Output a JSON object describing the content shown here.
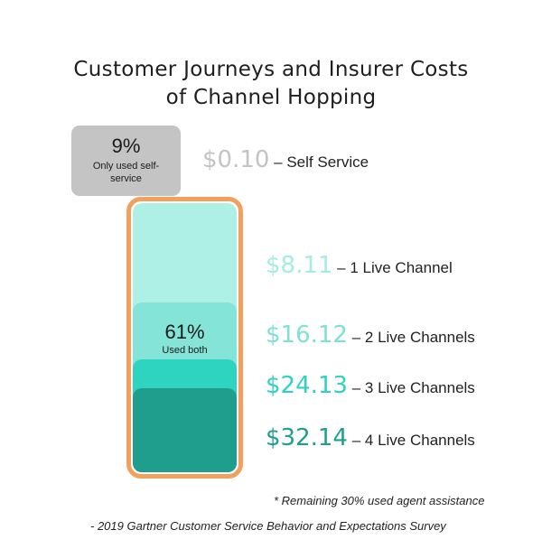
{
  "title_line1": "Customer Journeys and Insurer Costs",
  "title_line2": "of Channel Hopping",
  "self_service_box": {
    "pct": "9%",
    "label": "Only used self-service"
  },
  "used_both": {
    "pct": "61%",
    "label": "Used both"
  },
  "chart_data": {
    "type": "table",
    "title": "Customer Journeys and Insurer Costs of Channel Hopping",
    "columns": [
      "cost",
      "channel"
    ],
    "rows": [
      {
        "amount": "$0.10",
        "separator": "–",
        "channel": "Self Service",
        "value": 0.1,
        "color": "#c4c4c4"
      },
      {
        "amount": "$8.11",
        "separator": "–",
        "channel": "1 Live Channel",
        "value": 8.11,
        "color": "#a6ece2"
      },
      {
        "amount": "$16.12",
        "separator": "–",
        "channel": "2 Live Channels",
        "value": 16.12,
        "color": "#7ee1d4"
      },
      {
        "amount": "$24.13",
        "separator": "–",
        "channel": "3 Live Channels",
        "value": 24.13,
        "color": "#2fd1bf"
      },
      {
        "amount": "$32.14",
        "separator": "–",
        "channel": "4 Live Channels",
        "value": 32.14,
        "color": "#1e9e8d"
      }
    ],
    "shares": [
      {
        "label": "Only used self-service",
        "percent": 9
      },
      {
        "label": "Used both",
        "percent": 61
      },
      {
        "label": "used agent assistance",
        "percent": 30
      }
    ]
  },
  "colors": {
    "container_border": "#f2a05e",
    "band_1": "#aef0e6",
    "band_2": "#84e4d7",
    "band_3": "#2fd4c0",
    "band_4": "#1f9e8e",
    "self_box": "#c4c4c4"
  },
  "footnote": "* Remaining 30% used agent assistance",
  "source": "- 2019 Gartner Customer Service Behavior and Expectations Survey"
}
